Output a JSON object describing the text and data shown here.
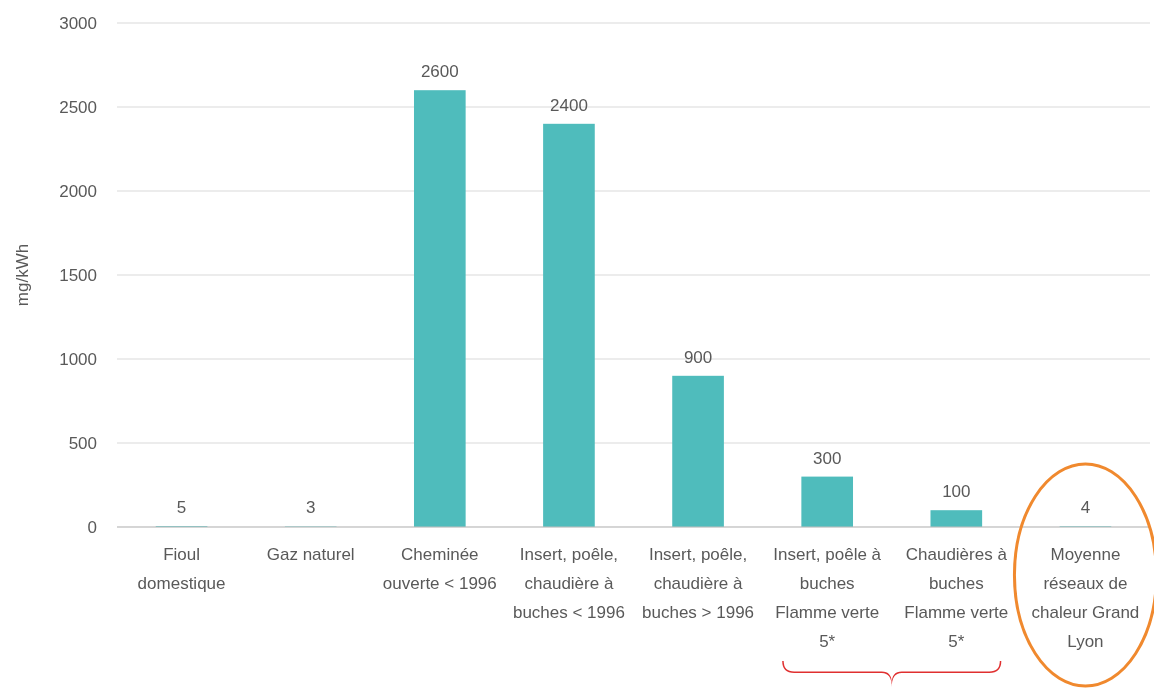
{
  "chart_data": {
    "type": "bar",
    "ylabel": "mg/kWh",
    "categories": [
      "Fioul domestique",
      "Gaz naturel",
      "Cheminée ouverte < 1996",
      "Insert, poêle, chaudière à buches < 1996",
      "Insert, poêle, chaudière à buches > 1996",
      "Insert, poêle à buches Flamme verte 5*",
      "Chaudières à buches Flamme verte 5*",
      "Moyenne réseaux de chaleur Grand Lyon"
    ],
    "values": [
      5,
      3,
      2600,
      2400,
      900,
      300,
      100,
      4
    ],
    "color": "#4fbcbc",
    "ylim": [
      0,
      3000
    ],
    "yticks": [
      0,
      500,
      1000,
      1500,
      2000,
      2500,
      3000
    ],
    "grid": "y",
    "data_labels": true
  }
}
